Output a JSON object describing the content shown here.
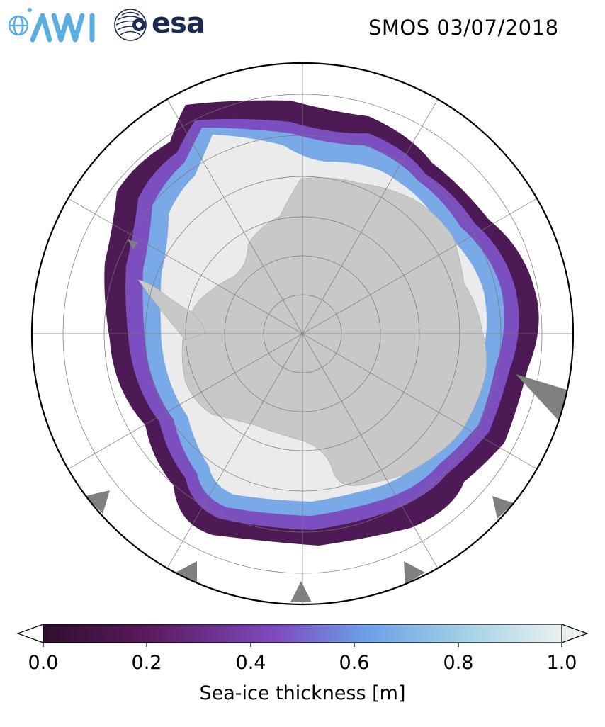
{
  "header": {
    "title": "SMOS 03/07/2018",
    "logos": [
      {
        "name": "AWI",
        "text": "AWI",
        "color": "#5aaee0"
      },
      {
        "name": "esa",
        "text": "esa",
        "color": "#1d2a52"
      }
    ]
  },
  "map": {
    "projection": "south-polar-stereographic",
    "land_color": "#c8c8c8",
    "ocean_color": "#ffffff",
    "sea_ice_fill_color": "#ebebeb",
    "masked_color": "#808080",
    "graticule": true
  },
  "colorbar": {
    "label": "Sea-ice thickness [m]",
    "ticks": [
      "0.0",
      "0.2",
      "0.4",
      "0.6",
      "0.8",
      "1.0"
    ],
    "range": [
      0.0,
      1.0
    ],
    "extend": "both",
    "colors": [
      "#2e0f2d",
      "#5a1a5c",
      "#7f4bbf",
      "#6a9fe6",
      "#a4d2e6",
      "#ebf0f0"
    ]
  }
}
